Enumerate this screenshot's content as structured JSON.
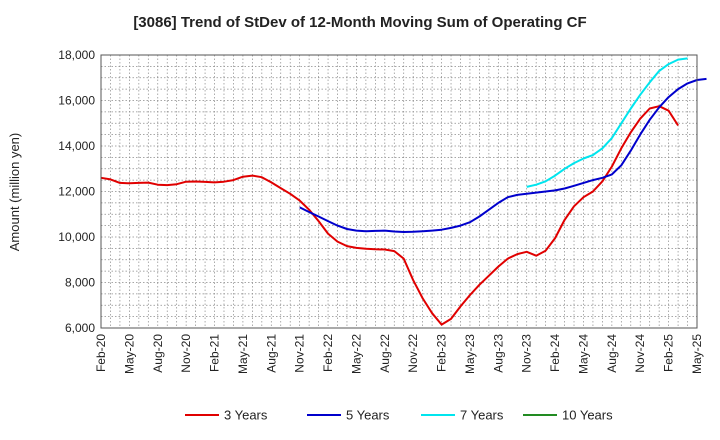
{
  "chart_data": {
    "type": "line",
    "title": "[3086]  Trend of StDev of 12-Month Moving Sum of Operating CF",
    "xlabel": "",
    "ylabel": "Amount (million yen)",
    "ylim": [
      6000,
      18000
    ],
    "yticks": [
      6000,
      8000,
      10000,
      12000,
      14000,
      16000,
      18000
    ],
    "ytick_labels": [
      "6,000",
      "8,000",
      "10,000",
      "12,000",
      "14,000",
      "16,000",
      "18,000"
    ],
    "x_start": "Feb-20",
    "x_tick_labels": [
      "Feb-20",
      "May-20",
      "Aug-20",
      "Nov-20",
      "Feb-21",
      "May-21",
      "Aug-21",
      "Nov-21",
      "Feb-22",
      "May-22",
      "Aug-22",
      "Nov-22",
      "Feb-23",
      "May-23",
      "Aug-23",
      "Nov-23",
      "Feb-24",
      "May-24",
      "Aug-24",
      "Nov-24",
      "Feb-25",
      "May-25"
    ],
    "grid": true,
    "legend_position": "bottom",
    "series": [
      {
        "name": "3 Years",
        "color": "#e00000",
        "start_index": 0,
        "values": [
          12600,
          12530,
          12380,
          12360,
          12380,
          12390,
          12300,
          12280,
          12320,
          12430,
          12440,
          12420,
          12400,
          12430,
          12500,
          12650,
          12700,
          12630,
          12400,
          12150,
          11900,
          11600,
          11200,
          10700,
          10150,
          9800,
          9600,
          9520,
          9480,
          9460,
          9450,
          9380,
          9050,
          8100,
          7300,
          6650,
          6150,
          6400,
          6950,
          7450,
          7900,
          8300,
          8700,
          9050,
          9250,
          9350,
          9180,
          9400,
          9950,
          10750,
          11350,
          11750,
          12000,
          12450,
          13100,
          13900,
          14600,
          15200,
          15650,
          15750,
          15550,
          14900
        ]
      },
      {
        "name": "5 Years",
        "color": "#0000cc",
        "start_index": 21,
        "values": [
          11300,
          11100,
          10900,
          10700,
          10500,
          10350,
          10280,
          10250,
          10270,
          10280,
          10240,
          10220,
          10230,
          10250,
          10280,
          10320,
          10400,
          10500,
          10650,
          10900,
          11200,
          11500,
          11750,
          11850,
          11900,
          11950,
          12000,
          12050,
          12130,
          12250,
          12380,
          12500,
          12600,
          12750,
          13150,
          13800,
          14500,
          15150,
          15700,
          16150,
          16500,
          16750,
          16900,
          16950
        ]
      },
      {
        "name": "7 Years",
        "color": "#00e5ee",
        "start_index": 45,
        "values": [
          12200,
          12300,
          12450,
          12700,
          13000,
          13250,
          13450,
          13600,
          13900,
          14350,
          15000,
          15650,
          16250,
          16800,
          17300,
          17600,
          17800,
          17850
        ]
      },
      {
        "name": "10 Years",
        "color": "#228b22",
        "start_index": 0,
        "values": []
      }
    ]
  }
}
